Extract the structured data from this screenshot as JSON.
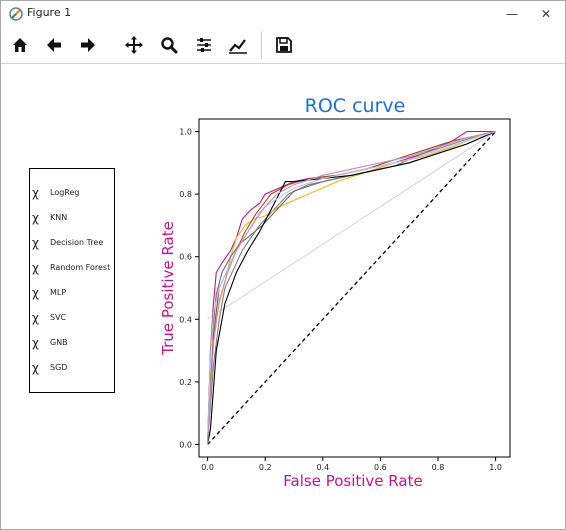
{
  "window": {
    "title": "Figure 1",
    "controls": {
      "minimize": "—",
      "restore": "❐",
      "close": "✕"
    }
  },
  "toolbar": {
    "tools": [
      {
        "name": "home-icon"
      },
      {
        "name": "back-arrow-icon"
      },
      {
        "name": "forward-arrow-icon"
      },
      {
        "name": "pan-icon"
      },
      {
        "name": "zoom-icon"
      },
      {
        "name": "configure-subplots-icon"
      },
      {
        "name": "edit-axis-icon"
      },
      {
        "name": "save-icon"
      }
    ]
  },
  "colors": {
    "title": "#1f6fd0",
    "axis_label": "#c0148c",
    "diagonal": "#000000",
    "diagonal_gray": "#c8c8c8"
  },
  "legend": {
    "marker": "χ",
    "items": [
      "LogReg",
      "KNN",
      "Decision Tree",
      "Random Forest",
      "MLP",
      "SVC",
      "GNB",
      "SGD"
    ]
  },
  "chart_data": {
    "type": "line",
    "title": "ROC curve",
    "xlabel": "False Positive Rate",
    "ylabel": "True Positive Rate",
    "xlim": [
      -0.03,
      1.05
    ],
    "ylim": [
      -0.04,
      1.04
    ],
    "xticks": [
      "0.0",
      "0.2",
      "0.4",
      "0.6",
      "0.8",
      "1.0"
    ],
    "yticks": [
      "0.0",
      "0.2",
      "0.4",
      "0.6",
      "0.8",
      "1.0"
    ],
    "grid": false,
    "series": [
      {
        "color": "#c0148c",
        "x": [
          0,
          0.01,
          0.02,
          0.03,
          0.05,
          0.08,
          0.1,
          0.12,
          0.15,
          0.18,
          0.2,
          0.25,
          0.3,
          0.35,
          0.45,
          0.55,
          0.65,
          0.75,
          0.85,
          0.9,
          1.0
        ],
        "y": [
          0,
          0.3,
          0.45,
          0.55,
          0.58,
          0.62,
          0.66,
          0.72,
          0.75,
          0.77,
          0.8,
          0.82,
          0.84,
          0.85,
          0.86,
          0.88,
          0.9,
          0.93,
          0.97,
          1.0,
          1.0
        ]
      },
      {
        "color": "#808080",
        "x": [
          0,
          0.02,
          0.04,
          0.06,
          0.09,
          0.12,
          0.15,
          0.18,
          0.22,
          0.28,
          0.35,
          0.45,
          0.55,
          0.65,
          0.75,
          0.85,
          0.95,
          1.0
        ],
        "y": [
          0,
          0.25,
          0.4,
          0.5,
          0.56,
          0.62,
          0.66,
          0.7,
          0.74,
          0.8,
          0.83,
          0.85,
          0.87,
          0.89,
          0.93,
          0.96,
          0.99,
          1.0
        ]
      },
      {
        "color": "#f2b21c",
        "x": [
          0,
          0.01,
          0.02,
          0.04,
          0.06,
          0.08,
          0.1,
          0.13,
          0.16,
          0.2,
          0.25,
          0.3,
          0.35,
          0.45,
          0.55,
          0.65,
          0.75,
          0.85,
          0.95,
          1.0
        ],
        "y": [
          0,
          0.2,
          0.35,
          0.45,
          0.52,
          0.6,
          0.66,
          0.7,
          0.72,
          0.73,
          0.76,
          0.78,
          0.8,
          0.84,
          0.87,
          0.9,
          0.92,
          0.95,
          0.99,
          1.0
        ]
      },
      {
        "color": "#a04a1c",
        "x": [
          0,
          0.02,
          0.04,
          0.07,
          0.1,
          0.13,
          0.17,
          0.22,
          0.28,
          0.35,
          0.45,
          0.55,
          0.65,
          0.75,
          0.85,
          0.95,
          1.0
        ],
        "y": [
          0,
          0.35,
          0.5,
          0.56,
          0.62,
          0.68,
          0.74,
          0.8,
          0.83,
          0.85,
          0.86,
          0.88,
          0.91,
          0.94,
          0.97,
          0.99,
          1.0
        ]
      },
      {
        "color": "#6a6a6a",
        "x": [
          0,
          0.01,
          0.03,
          0.05,
          0.08,
          0.11,
          0.15,
          0.19,
          0.24,
          0.3,
          0.4,
          0.5,
          0.6,
          0.7,
          0.8,
          0.9,
          1.0
        ],
        "y": [
          0,
          0.3,
          0.48,
          0.55,
          0.6,
          0.64,
          0.67,
          0.7,
          0.75,
          0.81,
          0.84,
          0.86,
          0.88,
          0.9,
          0.93,
          0.96,
          1.0
        ]
      },
      {
        "color": "#000000",
        "x": [
          0,
          0.01,
          0.03,
          0.06,
          0.1,
          0.14,
          0.18,
          0.22,
          0.27,
          0.3,
          0.4,
          0.5,
          0.6,
          0.7,
          0.8,
          0.9,
          1.0
        ],
        "y": [
          0,
          0.05,
          0.3,
          0.45,
          0.55,
          0.62,
          0.68,
          0.75,
          0.84,
          0.84,
          0.85,
          0.86,
          0.88,
          0.9,
          0.93,
          0.96,
          1.0
        ]
      },
      {
        "color": "#b0c8e8",
        "x": [
          0,
          0.01,
          0.02,
          0.04,
          0.07,
          0.1,
          0.14,
          0.2,
          0.3,
          0.4,
          0.5,
          0.6,
          0.7,
          0.8,
          0.9,
          1.0
        ],
        "y": [
          0,
          0.28,
          0.42,
          0.5,
          0.56,
          0.62,
          0.68,
          0.76,
          0.82,
          0.85,
          0.87,
          0.89,
          0.91,
          0.94,
          0.97,
          1.0
        ]
      },
      {
        "color": "#c88ac8",
        "x": [
          0,
          0.02,
          0.04,
          0.07,
          0.1,
          0.14,
          0.18,
          0.24,
          0.3,
          0.4,
          0.5,
          0.6,
          0.7,
          0.8,
          0.9,
          1.0
        ],
        "y": [
          0,
          0.32,
          0.46,
          0.55,
          0.62,
          0.68,
          0.74,
          0.8,
          0.83,
          0.86,
          0.88,
          0.9,
          0.92,
          0.95,
          0.98,
          1.0
        ]
      }
    ],
    "reference_lines": [
      {
        "style": "dashed",
        "color": "#000000",
        "x": [
          0,
          1
        ],
        "y": [
          0,
          1
        ]
      },
      {
        "style": "solid",
        "color": "#c8c8c8",
        "x": [
          0,
          1
        ],
        "y": [
          0.4,
          1
        ]
      }
    ]
  }
}
